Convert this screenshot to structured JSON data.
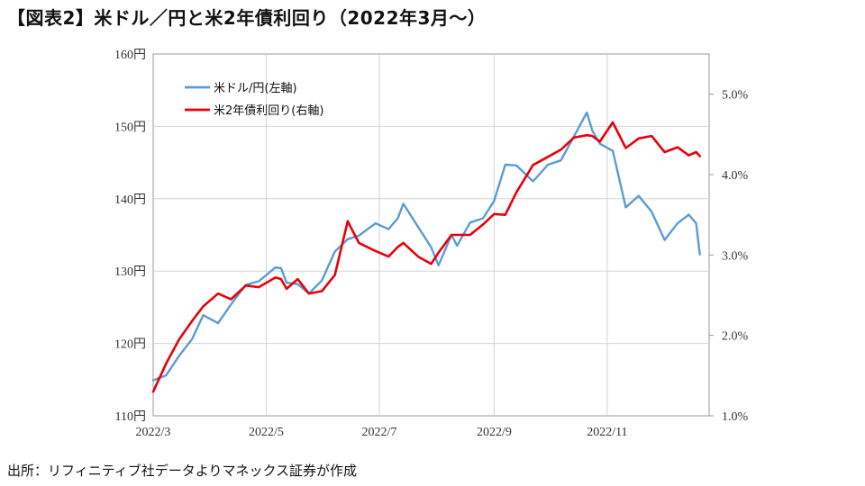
{
  "title": "【図表2】米ドル／円と米2年債利回り（2022年3月～）",
  "source": "出所：リフィニティブ社データよりマネックス証券が作成",
  "chart_data": {
    "type": "line",
    "x_ticks": [
      "2022/3",
      "2022/5",
      "2022/7",
      "2022/9",
      "2022/11"
    ],
    "y_left": {
      "min": 110,
      "max": 160,
      "step": 10,
      "ticks": [
        "110円",
        "120円",
        "130円",
        "140円",
        "150円",
        "160円"
      ]
    },
    "y_right": {
      "min": 1.0,
      "max": 5.5,
      "ticks": [
        "1.0%",
        "2.0%",
        "3.0%",
        "4.0%",
        "5.0%"
      ]
    },
    "grid": true,
    "legend_position": "top-left",
    "series": [
      {
        "name": "米ドル/円(左軸)",
        "axis": "left",
        "color": "#5b9bd5",
        "points": [
          [
            "2022-03-01",
            114.9
          ],
          [
            "2022-03-08",
            115.6
          ],
          [
            "2022-03-15",
            118.3
          ],
          [
            "2022-03-22",
            120.6
          ],
          [
            "2022-03-28",
            123.9
          ],
          [
            "2022-04-05",
            122.8
          ],
          [
            "2022-04-12",
            125.4
          ],
          [
            "2022-04-20",
            128.1
          ],
          [
            "2022-04-27",
            128.6
          ],
          [
            "2022-05-06",
            130.5
          ],
          [
            "2022-05-09",
            130.4
          ],
          [
            "2022-05-12",
            128.4
          ],
          [
            "2022-05-18",
            128.2
          ],
          [
            "2022-05-24",
            126.9
          ],
          [
            "2022-05-31",
            128.7
          ],
          [
            "2022-06-07",
            132.7
          ],
          [
            "2022-06-14",
            134.4
          ],
          [
            "2022-06-20",
            134.9
          ],
          [
            "2022-06-29",
            136.6
          ],
          [
            "2022-07-06",
            135.8
          ],
          [
            "2022-07-11",
            137.3
          ],
          [
            "2022-07-14",
            139.3
          ],
          [
            "2022-07-22",
            136.1
          ],
          [
            "2022-07-29",
            133.3
          ],
          [
            "2022-08-02",
            130.8
          ],
          [
            "2022-08-09",
            135.0
          ],
          [
            "2022-08-12",
            133.5
          ],
          [
            "2022-08-19",
            136.7
          ],
          [
            "2022-08-26",
            137.3
          ],
          [
            "2022-09-01",
            139.7
          ],
          [
            "2022-09-07",
            144.7
          ],
          [
            "2022-09-13",
            144.6
          ],
          [
            "2022-09-22",
            142.4
          ],
          [
            "2022-09-30",
            144.7
          ],
          [
            "2022-10-07",
            145.3
          ],
          [
            "2022-10-14",
            148.6
          ],
          [
            "2022-10-21",
            151.9
          ],
          [
            "2022-10-24",
            149.4
          ],
          [
            "2022-10-28",
            147.6
          ],
          [
            "2022-11-04",
            146.6
          ],
          [
            "2022-11-11",
            138.8
          ],
          [
            "2022-11-18",
            140.4
          ],
          [
            "2022-11-25",
            138.2
          ],
          [
            "2022-12-02",
            134.3
          ],
          [
            "2022-12-09",
            136.6
          ],
          [
            "2022-12-15",
            137.8
          ],
          [
            "2022-12-19",
            136.6
          ],
          [
            "2022-12-21",
            132.3
          ]
        ]
      },
      {
        "name": "米2年債利回り(右軸)",
        "axis": "right",
        "color": "#e8000b",
        "points": [
          [
            "2022-03-01",
            1.3
          ],
          [
            "2022-03-08",
            1.65
          ],
          [
            "2022-03-15",
            1.95
          ],
          [
            "2022-03-22",
            2.18
          ],
          [
            "2022-03-28",
            2.36
          ],
          [
            "2022-04-05",
            2.52
          ],
          [
            "2022-04-12",
            2.45
          ],
          [
            "2022-04-20",
            2.62
          ],
          [
            "2022-04-27",
            2.6
          ],
          [
            "2022-05-06",
            2.72
          ],
          [
            "2022-05-09",
            2.7
          ],
          [
            "2022-05-12",
            2.58
          ],
          [
            "2022-05-18",
            2.7
          ],
          [
            "2022-05-24",
            2.52
          ],
          [
            "2022-05-31",
            2.55
          ],
          [
            "2022-06-07",
            2.75
          ],
          [
            "2022-06-14",
            3.42
          ],
          [
            "2022-06-20",
            3.15
          ],
          [
            "2022-06-29",
            3.05
          ],
          [
            "2022-07-06",
            2.98
          ],
          [
            "2022-07-11",
            3.1
          ],
          [
            "2022-07-14",
            3.15
          ],
          [
            "2022-07-22",
            2.98
          ],
          [
            "2022-07-29",
            2.89
          ],
          [
            "2022-08-02",
            3.03
          ],
          [
            "2022-08-09",
            3.25
          ],
          [
            "2022-08-12",
            3.25
          ],
          [
            "2022-08-19",
            3.25
          ],
          [
            "2022-08-26",
            3.38
          ],
          [
            "2022-09-01",
            3.51
          ],
          [
            "2022-09-07",
            3.5
          ],
          [
            "2022-09-13",
            3.78
          ],
          [
            "2022-09-22",
            4.12
          ],
          [
            "2022-09-30",
            4.22
          ],
          [
            "2022-10-07",
            4.31
          ],
          [
            "2022-10-14",
            4.46
          ],
          [
            "2022-10-21",
            4.49
          ],
          [
            "2022-10-24",
            4.48
          ],
          [
            "2022-10-28",
            4.41
          ],
          [
            "2022-11-04",
            4.65
          ],
          [
            "2022-11-11",
            4.33
          ],
          [
            "2022-11-18",
            4.45
          ],
          [
            "2022-11-25",
            4.48
          ],
          [
            "2022-12-02",
            4.28
          ],
          [
            "2022-12-09",
            4.34
          ],
          [
            "2022-12-15",
            4.24
          ],
          [
            "2022-12-19",
            4.28
          ],
          [
            "2022-12-21",
            4.23
          ]
        ]
      }
    ]
  }
}
